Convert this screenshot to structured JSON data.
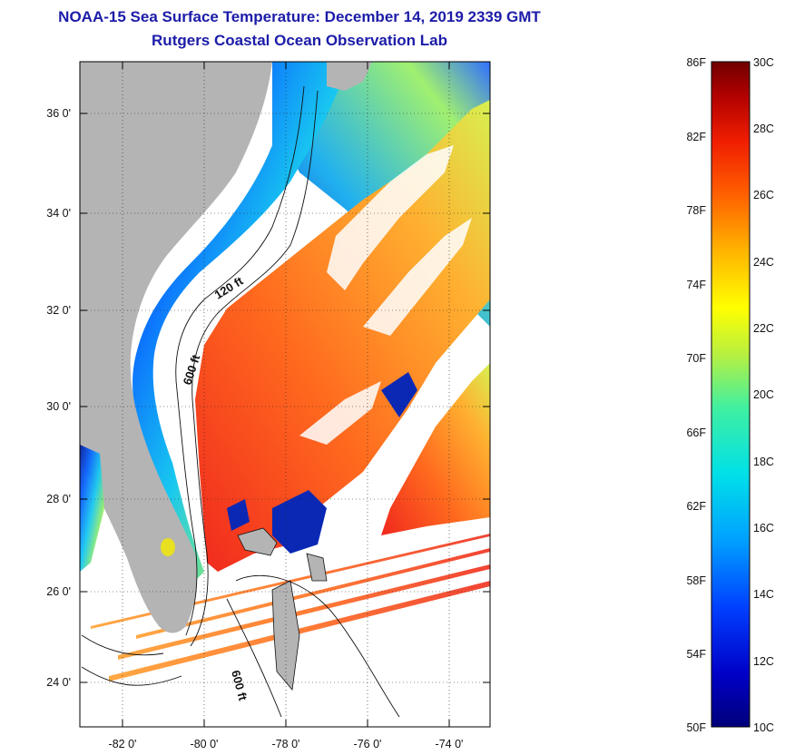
{
  "title": {
    "line1": "NOAA-15 Sea Surface Temperature:  December 14, 2019 2339 GMT",
    "line2": "Rutgers Coastal Ocean Observation Lab"
  },
  "map": {
    "lat_labels": [
      "36 0'",
      "34 0'",
      "32 0'",
      "30 0'",
      "28 0'",
      "26 0'",
      "24 0'"
    ],
    "lon_labels": [
      "-82 0'",
      "-80 0'",
      "-78 0'",
      "-76 0'",
      "-74 0'"
    ],
    "isobath_labels": [
      "120 ft",
      "600 ft",
      "600 ft"
    ],
    "colors": {
      "land": "#b4b4b4",
      "no_data": "#ffffff",
      "warm": "#e8321e",
      "cold": "#0a1e8c"
    }
  },
  "colorbar": {
    "f_labels": [
      "86F",
      "82F",
      "78F",
      "74F",
      "70F",
      "66F",
      "62F",
      "58F",
      "54F",
      "50F"
    ],
    "c_labels": [
      "30C",
      "28C",
      "26C",
      "24C",
      "22C",
      "20C",
      "18C",
      "16C",
      "14C",
      "12C",
      "10C"
    ]
  }
}
